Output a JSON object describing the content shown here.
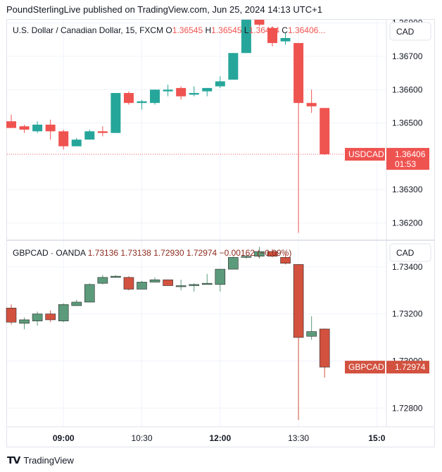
{
  "header": {
    "publisher_line": "PoundSterlingLive published on TradingView.com, Jun 25, 2024 14:13 UTC+1"
  },
  "footer": {
    "brand": "TradingView"
  },
  "colors": {
    "up_teal": "#26a69a",
    "down_red": "#ef5350",
    "up_green": "#5b9a7a",
    "down_brick": "#d2513f",
    "text": "#131722",
    "axis_text": "#131722",
    "grid": "#f0f3fa",
    "border": "#e0e3eb"
  },
  "chart_data": [
    {
      "type": "candlestick",
      "title_parts": [
        {
          "text": "U.S. Dollar / Canadian Dollar, 15, FXCM",
          "role": "name"
        },
        {
          "text": "O",
          "role": "label"
        },
        {
          "text": "1.36545",
          "role": "value"
        },
        {
          "text": "H",
          "role": "label"
        },
        {
          "text": "1.36545",
          "role": "value"
        },
        {
          "text": "L",
          "role": "label"
        },
        {
          "text": "1.36404",
          "role": "value"
        },
        {
          "text": "C",
          "role": "label"
        },
        {
          "text": "1.36406...",
          "role": "value"
        }
      ],
      "currency": "CAD",
      "yticks": [
        "1.36800",
        "1.36700",
        "1.36600",
        "1.36500",
        "1.36300",
        "1.36200"
      ],
      "ytick_values": [
        1.368,
        1.367,
        1.366,
        1.365,
        1.363,
        1.362
      ],
      "ylim": [
        1.3615,
        1.3681
      ],
      "last_price_label": {
        "symbol": "USDCAD",
        "price": "1.36406",
        "countdown": "01:53",
        "value": 1.36406
      },
      "candles": [
        {
          "o": 1.36505,
          "h": 1.36525,
          "l": 1.36485,
          "c": 1.36485
        },
        {
          "o": 1.3649,
          "h": 1.36495,
          "l": 1.3647,
          "c": 1.3648
        },
        {
          "o": 1.36475,
          "h": 1.36505,
          "l": 1.3647,
          "c": 1.36495
        },
        {
          "o": 1.36495,
          "h": 1.3651,
          "l": 1.3645,
          "c": 1.36475
        },
        {
          "o": 1.36475,
          "h": 1.3648,
          "l": 1.3642,
          "c": 1.3643
        },
        {
          "o": 1.3643,
          "h": 1.36455,
          "l": 1.3643,
          "c": 1.3645
        },
        {
          "o": 1.3645,
          "h": 1.3648,
          "l": 1.3645,
          "c": 1.36475
        },
        {
          "o": 1.36475,
          "h": 1.3649,
          "l": 1.3646,
          "c": 1.3647
        },
        {
          "o": 1.3647,
          "h": 1.3659,
          "l": 1.3647,
          "c": 1.3659
        },
        {
          "o": 1.3659,
          "h": 1.36595,
          "l": 1.36555,
          "c": 1.3656
        },
        {
          "o": 1.3656,
          "h": 1.3657,
          "l": 1.3654,
          "c": 1.36565
        },
        {
          "o": 1.3656,
          "h": 1.366,
          "l": 1.36555,
          "c": 1.366
        },
        {
          "o": 1.36595,
          "h": 1.36615,
          "l": 1.3658,
          "c": 1.366
        },
        {
          "o": 1.36605,
          "h": 1.3661,
          "l": 1.3657,
          "c": 1.3658
        },
        {
          "o": 1.36585,
          "h": 1.3661,
          "l": 1.3658,
          "c": 1.3659
        },
        {
          "o": 1.36595,
          "h": 1.36605,
          "l": 1.3658,
          "c": 1.36605
        },
        {
          "o": 1.3661,
          "h": 1.3664,
          "l": 1.36605,
          "c": 1.36625
        },
        {
          "o": 1.3663,
          "h": 1.3671,
          "l": 1.3663,
          "c": 1.3671
        },
        {
          "o": 1.3671,
          "h": 1.3681,
          "l": 1.3671,
          "c": 1.3681
        },
        {
          "o": 1.3681,
          "h": 1.3681,
          "l": 1.3679,
          "c": 1.36795
        },
        {
          "o": 1.36785,
          "h": 1.3679,
          "l": 1.3673,
          "c": 1.3674
        },
        {
          "o": 1.36745,
          "h": 1.3677,
          "l": 1.36735,
          "c": 1.36755
        },
        {
          "o": 1.3674,
          "h": 1.3674,
          "l": 1.3617,
          "c": 1.3656
        },
        {
          "o": 1.3656,
          "h": 1.366,
          "l": 1.3653,
          "c": 1.3655
        },
        {
          "o": 1.36545,
          "h": 1.36545,
          "l": 1.36404,
          "c": 1.36406
        }
      ]
    },
    {
      "type": "candlestick",
      "title_parts": [
        {
          "text": "GBPCAD · OANDA",
          "role": "name"
        },
        {
          "text": "1.73136",
          "role": "value"
        },
        {
          "text": "1.73138",
          "role": "value"
        },
        {
          "text": "1.72930",
          "role": "value"
        },
        {
          "text": "1.72974",
          "role": "value"
        },
        {
          "text": "−0.00162 (−0.09%)",
          "role": "value"
        }
      ],
      "currency": "CAD",
      "yticks": [
        "1.73400",
        "1.73200",
        "1.73000",
        "1.72800"
      ],
      "ytick_values": [
        1.734,
        1.732,
        1.73,
        1.728
      ],
      "ylim": [
        1.7272,
        1.7351
      ],
      "last_price_label": {
        "symbol": "GBPCAD",
        "price": "1.72974",
        "value": 1.72974
      },
      "candles": [
        {
          "o": 1.73225,
          "h": 1.7324,
          "l": 1.73155,
          "c": 1.73165
        },
        {
          "o": 1.7316,
          "h": 1.73185,
          "l": 1.73135,
          "c": 1.73175
        },
        {
          "o": 1.7317,
          "h": 1.7321,
          "l": 1.7315,
          "c": 1.732
        },
        {
          "o": 1.732,
          "h": 1.73215,
          "l": 1.73165,
          "c": 1.73175
        },
        {
          "o": 1.7317,
          "h": 1.73245,
          "l": 1.73165,
          "c": 1.7324
        },
        {
          "o": 1.73235,
          "h": 1.7326,
          "l": 1.73235,
          "c": 1.7325
        },
        {
          "o": 1.7325,
          "h": 1.7333,
          "l": 1.7325,
          "c": 1.73325
        },
        {
          "o": 1.7333,
          "h": 1.73365,
          "l": 1.73325,
          "c": 1.73355
        },
        {
          "o": 1.73355,
          "h": 1.73365,
          "l": 1.73355,
          "c": 1.7336
        },
        {
          "o": 1.73355,
          "h": 1.7336,
          "l": 1.733,
          "c": 1.73305
        },
        {
          "o": 1.73305,
          "h": 1.7334,
          "l": 1.73305,
          "c": 1.73335
        },
        {
          "o": 1.73335,
          "h": 1.73355,
          "l": 1.73335,
          "c": 1.73345
        },
        {
          "o": 1.73345,
          "h": 1.73345,
          "l": 1.7332,
          "c": 1.7332
        },
        {
          "o": 1.7332,
          "h": 1.73345,
          "l": 1.733,
          "c": 1.7332
        },
        {
          "o": 1.7332,
          "h": 1.7333,
          "l": 1.73295,
          "c": 1.73325
        },
        {
          "o": 1.73325,
          "h": 1.7337,
          "l": 1.73325,
          "c": 1.7333
        },
        {
          "o": 1.73325,
          "h": 1.7339,
          "l": 1.73295,
          "c": 1.7339
        },
        {
          "o": 1.7339,
          "h": 1.73445,
          "l": 1.7339,
          "c": 1.7344
        },
        {
          "o": 1.7344,
          "h": 1.7345,
          "l": 1.73435,
          "c": 1.73445
        },
        {
          "o": 1.73445,
          "h": 1.73485,
          "l": 1.73435,
          "c": 1.73465
        },
        {
          "o": 1.73465,
          "h": 1.73475,
          "l": 1.7344,
          "c": 1.73445
        },
        {
          "o": 1.7344,
          "h": 1.73455,
          "l": 1.7341,
          "c": 1.73415
        },
        {
          "o": 1.7341,
          "h": 1.7341,
          "l": 1.7275,
          "c": 1.731
        },
        {
          "o": 1.73105,
          "h": 1.7319,
          "l": 1.7309,
          "c": 1.73125
        },
        {
          "o": 1.73136,
          "h": 1.73138,
          "l": 1.7293,
          "c": 1.72974
        }
      ]
    }
  ],
  "x_axis": {
    "ticks": [
      {
        "label": "09:00",
        "index": 4,
        "bold": true
      },
      {
        "label": "10:30",
        "index": 10,
        "bold": false
      },
      {
        "label": "12:00",
        "index": 16,
        "bold": true
      },
      {
        "label": "13:30",
        "index": 22,
        "bold": false
      },
      {
        "label": "15:0",
        "index": 28,
        "bold": true
      }
    ]
  }
}
